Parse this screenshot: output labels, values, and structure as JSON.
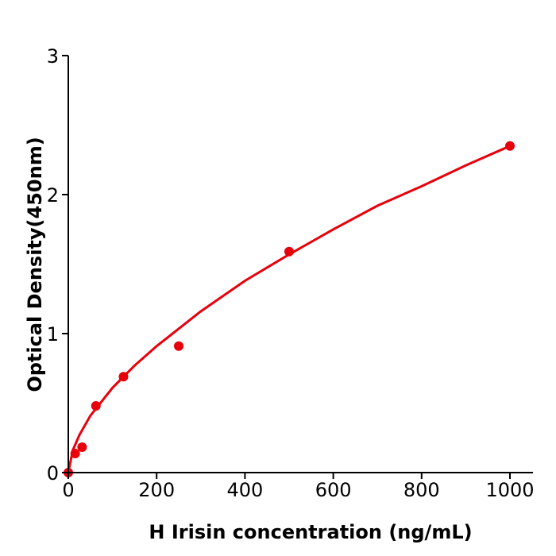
{
  "chart_data": {
    "type": "scatter",
    "xlabel": "H  Irisin concentration (ng/mL)",
    "ylabel": "Optical Density(450nm)",
    "xlim": [
      0,
      1050
    ],
    "ylim": [
      0,
      3
    ],
    "xticks": [
      0,
      200,
      400,
      600,
      800,
      1000
    ],
    "yticks": [
      0,
      1,
      2,
      3
    ],
    "grid": false,
    "color": "#e8000b",
    "points": {
      "x": [
        0,
        15.6,
        31.25,
        62.5,
        125,
        250,
        500,
        1000
      ],
      "y": [
        0.0,
        0.137,
        0.183,
        0.48,
        0.69,
        0.91,
        1.59,
        2.35
      ]
    },
    "curve": {
      "x": [
        0,
        10,
        25,
        50,
        100,
        150,
        200,
        300,
        400,
        500,
        600,
        700,
        800,
        900,
        1000
      ],
      "y": [
        0,
        0.16,
        0.27,
        0.41,
        0.61,
        0.77,
        0.91,
        1.16,
        1.38,
        1.57,
        1.75,
        1.92,
        2.06,
        2.21,
        2.35
      ]
    }
  }
}
